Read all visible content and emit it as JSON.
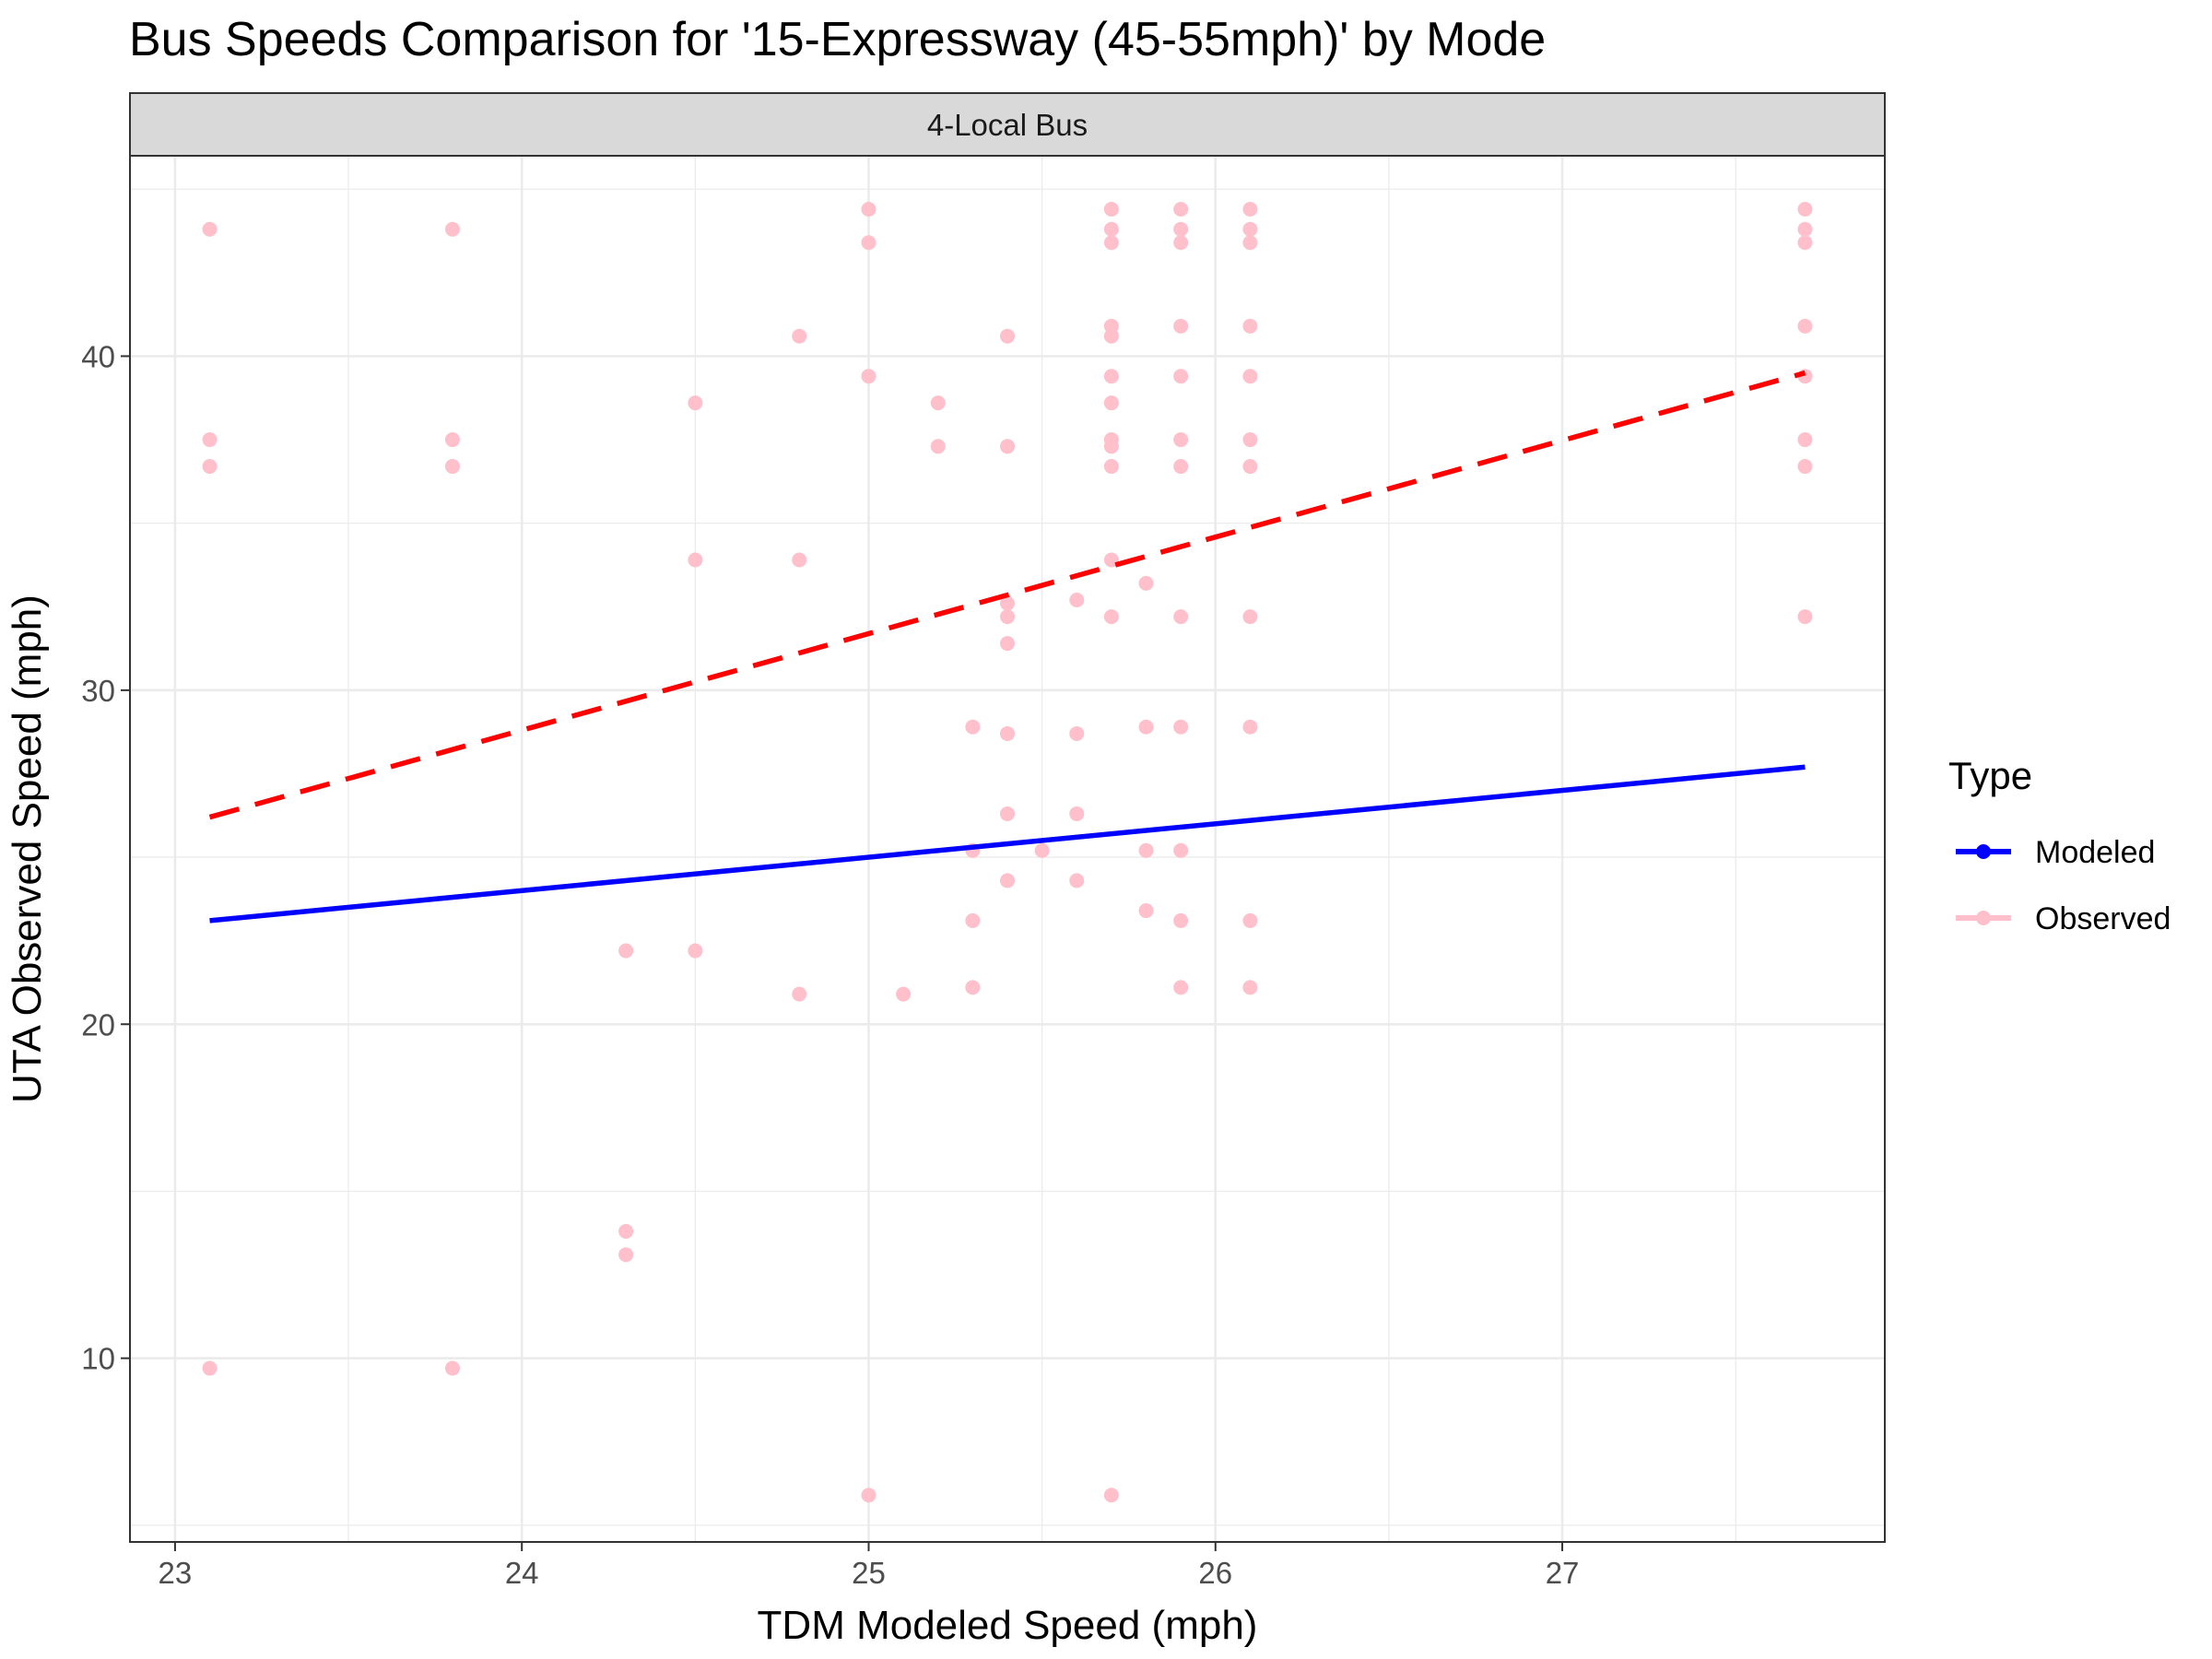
{
  "chart_data": {
    "type": "scatter",
    "title": "Bus Speeds Comparison for '15-Expressway (45-55mph)' by Mode",
    "facet_label": "4-Local Bus",
    "xlabel": "TDM Modeled Speed (mph)",
    "ylabel": "UTA Observed Speed (mph)",
    "xlim": [
      22.87,
      27.93
    ],
    "ylim": [
      4.5,
      46.0
    ],
    "x_ticks": [
      23,
      24,
      25,
      26,
      27
    ],
    "y_ticks": [
      10,
      20,
      30,
      40
    ],
    "grid": true,
    "legend": {
      "title": "Type",
      "position": "right",
      "entries": [
        {
          "label": "Modeled",
          "color": "#0000ff"
        },
        {
          "label": "Observed",
          "color": "#ffc0cb"
        }
      ]
    },
    "series": [
      {
        "name": "Observed",
        "kind": "points",
        "color": "#ffc0cb",
        "points": [
          [
            23.1,
            43.8
          ],
          [
            23.1,
            37.5
          ],
          [
            23.1,
            36.7
          ],
          [
            23.1,
            9.7
          ],
          [
            23.8,
            43.8
          ],
          [
            23.8,
            37.5
          ],
          [
            23.8,
            36.7
          ],
          [
            23.8,
            9.7
          ],
          [
            24.3,
            22.2
          ],
          [
            24.3,
            13.8
          ],
          [
            24.3,
            13.1
          ],
          [
            24.5,
            38.6
          ],
          [
            24.5,
            33.9
          ],
          [
            24.5,
            22.2
          ],
          [
            24.8,
            40.6
          ],
          [
            24.8,
            33.9
          ],
          [
            24.8,
            20.9
          ],
          [
            25.0,
            44.4
          ],
          [
            25.0,
            43.4
          ],
          [
            25.0,
            39.4
          ],
          [
            25.0,
            5.9
          ],
          [
            25.1,
            20.9
          ],
          [
            25.2,
            38.6
          ],
          [
            25.2,
            37.3
          ],
          [
            25.3,
            28.9
          ],
          [
            25.3,
            25.2
          ],
          [
            25.3,
            23.1
          ],
          [
            25.3,
            21.1
          ],
          [
            25.4,
            40.6
          ],
          [
            25.4,
            37.3
          ],
          [
            25.4,
            32.6
          ],
          [
            25.4,
            32.2
          ],
          [
            25.4,
            31.4
          ],
          [
            25.4,
            28.7
          ],
          [
            25.4,
            26.3
          ],
          [
            25.4,
            24.3
          ],
          [
            25.5,
            25.2
          ],
          [
            25.6,
            32.7
          ],
          [
            25.6,
            28.7
          ],
          [
            25.6,
            26.3
          ],
          [
            25.6,
            24.3
          ],
          [
            25.7,
            44.4
          ],
          [
            25.7,
            43.8
          ],
          [
            25.7,
            43.4
          ],
          [
            25.7,
            40.9
          ],
          [
            25.7,
            40.6
          ],
          [
            25.7,
            39.4
          ],
          [
            25.7,
            38.6
          ],
          [
            25.7,
            37.5
          ],
          [
            25.7,
            37.3
          ],
          [
            25.7,
            36.7
          ],
          [
            25.7,
            33.9
          ],
          [
            25.7,
            32.2
          ],
          [
            25.7,
            5.9
          ],
          [
            25.8,
            33.2
          ],
          [
            25.8,
            28.9
          ],
          [
            25.8,
            25.2
          ],
          [
            25.8,
            23.4
          ],
          [
            25.9,
            44.4
          ],
          [
            25.9,
            43.8
          ],
          [
            25.9,
            43.4
          ],
          [
            25.9,
            40.9
          ],
          [
            25.9,
            39.4
          ],
          [
            25.9,
            37.5
          ],
          [
            25.9,
            36.7
          ],
          [
            25.9,
            32.2
          ],
          [
            25.9,
            28.9
          ],
          [
            25.9,
            25.2
          ],
          [
            25.9,
            23.1
          ],
          [
            25.9,
            21.1
          ],
          [
            26.1,
            44.4
          ],
          [
            26.1,
            43.8
          ],
          [
            26.1,
            43.4
          ],
          [
            26.1,
            40.9
          ],
          [
            26.1,
            39.4
          ],
          [
            26.1,
            37.5
          ],
          [
            26.1,
            36.7
          ],
          [
            26.1,
            32.2
          ],
          [
            26.1,
            28.9
          ],
          [
            26.1,
            23.1
          ],
          [
            26.1,
            21.1
          ],
          [
            27.7,
            44.4
          ],
          [
            27.7,
            43.8
          ],
          [
            27.7,
            43.4
          ],
          [
            27.7,
            40.9
          ],
          [
            27.7,
            39.4
          ],
          [
            27.7,
            37.5
          ],
          [
            27.7,
            36.7
          ],
          [
            27.7,
            32.2
          ]
        ]
      },
      {
        "name": "Modeled",
        "kind": "line",
        "color": "#0000ff",
        "points": [
          [
            23.1,
            23.1
          ],
          [
            27.7,
            27.7
          ]
        ]
      },
      {
        "kind": "trend-line",
        "style": "dashed",
        "color": "#ff0000",
        "points": [
          [
            23.1,
            26.2
          ],
          [
            27.7,
            39.5
          ]
        ]
      }
    ]
  }
}
